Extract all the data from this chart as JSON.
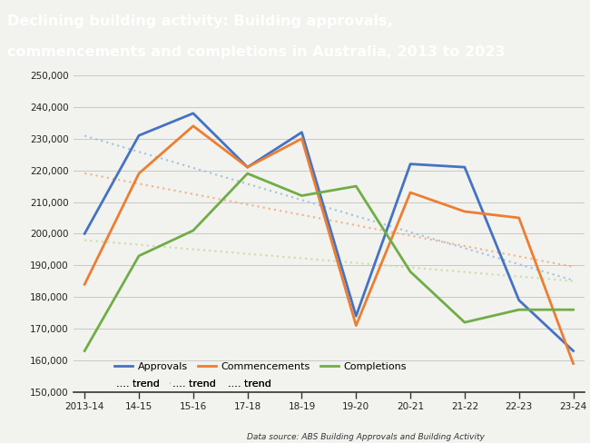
{
  "title_line1": "Declining building activity: Building approvals,",
  "title_line2": "commencements and completions in Australia, 2013 to 2023",
  "title_bg_color": "#1a4a7a",
  "title_text_color": "#ffffff",
  "source_text": "Data source: ABS Building Approvals and Building Activity",
  "x_labels": [
    "2013-14",
    "14-15",
    "15-16",
    "17-18",
    "18-19",
    "19-20",
    "20-21",
    "21-22",
    "22-23",
    "23-24"
  ],
  "approvals": [
    200000,
    231000,
    238000,
    221000,
    232000,
    174000,
    222000,
    221000,
    179000,
    163000
  ],
  "commencements": [
    184000,
    219000,
    234000,
    221000,
    230000,
    171000,
    213000,
    207000,
    205000,
    159000
  ],
  "completions": [
    163000,
    193000,
    201000,
    219000,
    212000,
    215000,
    188000,
    172000,
    176000,
    176000
  ],
  "approvals_color": "#4472c4",
  "commencements_color": "#ed7d31",
  "completions_color": "#70ad47",
  "trend_approvals_color": "#9dc3e6",
  "trend_commencements_color": "#f4b183",
  "trend_completions_color": "#c5e0a4",
  "ylim_min": 150000,
  "ylim_max": 250000,
  "ytick_step": 10000,
  "bg_color": "#f2f2ee",
  "grid_color": "#c8c8c8",
  "line_width": 2.0
}
